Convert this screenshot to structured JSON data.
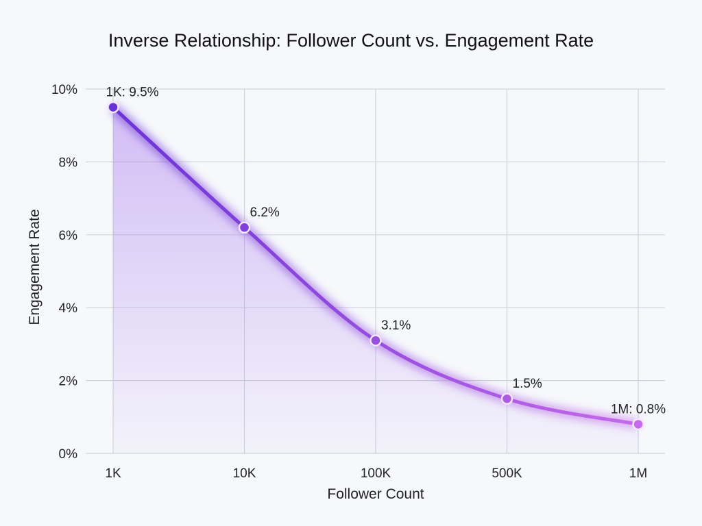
{
  "chart_data": {
    "type": "line",
    "title": "Inverse Relationship: Follower Count vs. Engagement Rate",
    "xlabel": "Follower Count",
    "ylabel": "Engagement Rate",
    "categories": [
      "1K",
      "10K",
      "100K",
      "500K",
      "1M"
    ],
    "values": [
      9.5,
      6.2,
      3.1,
      1.5,
      0.8
    ],
    "data_labels": [
      "1K: 9.5%",
      "6.2%",
      "3.1%",
      "1.5%",
      "1M: 0.8%"
    ],
    "ylim": [
      0,
      10
    ],
    "yticks": [
      0,
      2,
      4,
      6,
      8,
      10
    ],
    "ytick_labels": [
      "0%",
      "2%",
      "4%",
      "6%",
      "8%",
      "10%"
    ],
    "grid": true,
    "area_fill": true,
    "colors": {
      "line_start": "#6a32d6",
      "line_end": "#c56ae8",
      "fill": "#b58cf0",
      "background": "#f6f8fb",
      "grid": "#cfd3da"
    }
  }
}
